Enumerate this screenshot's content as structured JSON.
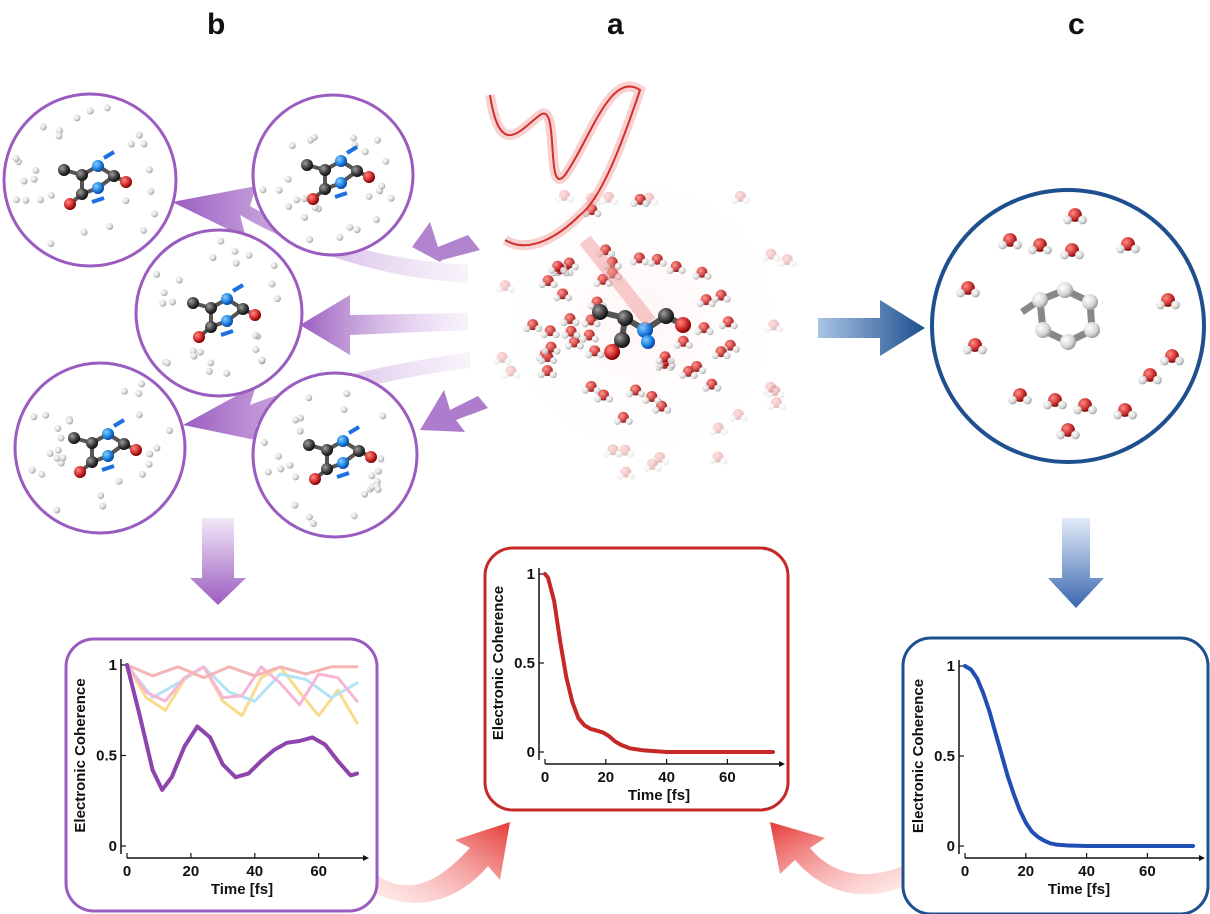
{
  "labels": {
    "a": "a",
    "b": "b",
    "c": "c"
  },
  "colors": {
    "purple": "#9b5cc0",
    "purple_light": "#d9bde9",
    "red": "#c62828",
    "blue": "#1e4f8f",
    "carbon": "#3a3a3a",
    "nitrogen": "#1e88e5",
    "oxygen": "#d32f2f",
    "hydrogen": "#e0e0e0"
  },
  "chart_data": [
    {
      "id": "b",
      "type": "line",
      "xlabel": "Time [fs]",
      "ylabel": "Electronic Coherence",
      "xlim": [
        0,
        72
      ],
      "ylim": [
        0,
        1
      ],
      "xticks": [
        "0",
        "20",
        "40",
        "60"
      ],
      "yticks": [
        "0",
        "0.5",
        "1"
      ],
      "series": [
        {
          "color": "#8e44ad",
          "x": [
            0,
            4,
            8,
            11,
            14,
            18,
            22,
            26,
            30,
            34,
            38,
            42,
            46,
            50,
            54,
            58,
            62,
            66,
            70,
            72
          ],
          "y": [
            1,
            0.72,
            0.42,
            0.31,
            0.38,
            0.55,
            0.66,
            0.6,
            0.45,
            0.38,
            0.4,
            0.47,
            0.53,
            0.57,
            0.58,
            0.6,
            0.56,
            0.47,
            0.39,
            0.4
          ]
        },
        {
          "color": "#f5b5b5",
          "x": [
            0,
            8,
            16,
            24,
            32,
            40,
            48,
            56,
            64,
            72
          ],
          "y": [
            1,
            0.94,
            0.99,
            0.93,
            0.99,
            0.94,
            0.99,
            0.95,
            0.99,
            0.99
          ]
        },
        {
          "color": "#f8b5d5",
          "x": [
            0,
            6,
            12,
            18,
            24,
            30,
            36,
            42,
            48,
            54,
            60,
            66,
            72
          ],
          "y": [
            1,
            0.85,
            0.8,
            0.93,
            0.99,
            0.82,
            0.83,
            0.99,
            0.9,
            0.78,
            0.95,
            0.93,
            0.8
          ]
        },
        {
          "color": "#b5e3f5",
          "x": [
            0,
            8,
            16,
            24,
            32,
            40,
            48,
            56,
            64,
            72
          ],
          "y": [
            1,
            0.82,
            0.9,
            0.99,
            0.85,
            0.8,
            0.95,
            0.92,
            0.82,
            0.9
          ]
        },
        {
          "color": "#f8dc8a",
          "x": [
            0,
            6,
            12,
            18,
            24,
            30,
            36,
            42,
            48,
            54,
            60,
            66,
            72
          ],
          "y": [
            1,
            0.82,
            0.75,
            0.92,
            0.99,
            0.8,
            0.72,
            0.93,
            0.99,
            0.85,
            0.72,
            0.86,
            0.68
          ]
        }
      ]
    },
    {
      "id": "a",
      "type": "line",
      "xlabel": "Time [fs]",
      "ylabel": "Electronic Coherence",
      "xlim": [
        0,
        75
      ],
      "ylim": [
        0,
        1
      ],
      "xticks": [
        "0",
        "20",
        "40",
        "60"
      ],
      "yticks": [
        "0",
        "0.5",
        "1"
      ],
      "series": [
        {
          "color": "#c62828",
          "x": [
            0,
            1,
            3,
            5,
            7,
            9,
            11,
            13,
            15,
            17,
            19,
            21,
            23,
            25,
            28,
            32,
            40,
            50,
            60,
            75
          ],
          "y": [
            1,
            0.98,
            0.85,
            0.62,
            0.42,
            0.28,
            0.19,
            0.15,
            0.13,
            0.12,
            0.11,
            0.09,
            0.06,
            0.04,
            0.02,
            0.01,
            0,
            0,
            0,
            0
          ]
        }
      ]
    },
    {
      "id": "c",
      "type": "line",
      "xlabel": "Time [fs]",
      "ylabel": "Electronic Coherence",
      "xlim": [
        0,
        75
      ],
      "ylim": [
        0,
        1
      ],
      "xticks": [
        "0",
        "20",
        "40",
        "60"
      ],
      "yticks": [
        "0",
        "0.5",
        "1"
      ],
      "series": [
        {
          "color": "#1f4fb5",
          "x": [
            0,
            2,
            4,
            6,
            8,
            10,
            12,
            14,
            16,
            18,
            20,
            22,
            24,
            26,
            28,
            30,
            34,
            40,
            50,
            60,
            75
          ],
          "y": [
            1,
            0.98,
            0.93,
            0.85,
            0.75,
            0.63,
            0.51,
            0.39,
            0.29,
            0.2,
            0.13,
            0.08,
            0.05,
            0.03,
            0.015,
            0.008,
            0.003,
            0,
            0,
            0,
            0
          ]
        }
      ]
    }
  ]
}
